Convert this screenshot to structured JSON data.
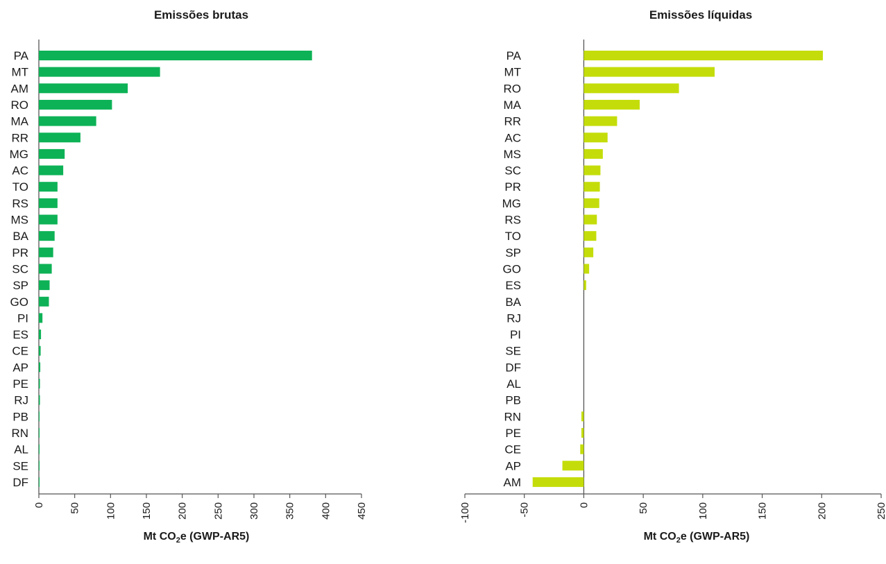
{
  "chart_data": [
    {
      "type": "bar",
      "orientation": "horizontal",
      "title": "Emissões brutas",
      "xlabel_main": "Mt CO",
      "xlabel_sub": "2",
      "xlabel_rest": "e (GWP-AR5)",
      "color": "#0db256",
      "xlim": [
        0,
        450
      ],
      "xticks": [
        0,
        50,
        100,
        150,
        200,
        250,
        300,
        350,
        400,
        450
      ],
      "categories": [
        "PA",
        "MT",
        "AM",
        "RO",
        "MA",
        "RR",
        "MG",
        "AC",
        "TO",
        "RS",
        "MS",
        "BA",
        "PR",
        "SC",
        "SP",
        "GO",
        "PI",
        "ES",
        "CE",
        "AP",
        "PE",
        "RJ",
        "PB",
        "RN",
        "AL",
        "SE",
        "DF"
      ],
      "values": [
        381,
        169,
        124,
        102,
        80,
        58,
        36,
        34,
        26,
        26,
        26,
        22,
        20,
        18,
        15,
        14,
        5,
        3,
        2.5,
        2,
        1.5,
        1.5,
        0.5,
        0.3,
        0.2,
        0.1,
        0.1
      ]
    },
    {
      "type": "bar",
      "orientation": "horizontal",
      "title": "Emissões líquidas",
      "xlabel_main": "Mt CO",
      "xlabel_sub": "2",
      "xlabel_rest": "e (GWP-AR5)",
      "color": "#c4dd0a",
      "xlim": [
        -100,
        250
      ],
      "xticks": [
        -100,
        -50,
        0,
        50,
        100,
        150,
        200,
        250
      ],
      "categories": [
        "PA",
        "MT",
        "RO",
        "MA",
        "RR",
        "AC",
        "MS",
        "SC",
        "PR",
        "MG",
        "RS",
        "TO",
        "SP",
        "GO",
        "ES",
        "BA",
        "RJ",
        "PI",
        "SE",
        "DF",
        "AL",
        "PB",
        "RN",
        "PE",
        "CE",
        "AP",
        "AM"
      ],
      "values": [
        201,
        110,
        80,
        47,
        28,
        20,
        16,
        14,
        13.5,
        13,
        11,
        10.5,
        8,
        4.5,
        2,
        0,
        0,
        0,
        0,
        0,
        0,
        0,
        -2,
        -2,
        -3,
        -18,
        -43
      ]
    }
  ]
}
